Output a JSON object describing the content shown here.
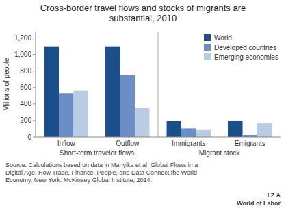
{
  "chart_data": {
    "type": "bar",
    "title": "Cross-border travel flows and stocks of migrants are\nsubstantial, 2010",
    "y_label": "Millions of people",
    "categories": [
      "Inflow",
      "Outflow",
      "Immigrants",
      "Emigrants"
    ],
    "series": [
      {
        "name": "World",
        "values": [
          1100,
          1100,
          195,
          200
        ],
        "color": "#1a4f8a"
      },
      {
        "name": "Developed countries",
        "values": [
          530,
          750,
          105,
          25
        ],
        "color": "#6b8ec7"
      },
      {
        "name": "Emerging economies",
        "values": [
          560,
          350,
          85,
          165
        ],
        "color": "#b8cce4"
      }
    ],
    "ylim": [
      0,
      1280
    ],
    "yticks": [
      0,
      200,
      400,
      600,
      800,
      {
        "value": 1000,
        "label": "1,000"
      },
      {
        "value": 1200,
        "label": "1,200"
      }
    ],
    "grid": false,
    "legend": "upper right",
    "annotations": [
      "Short-term traveler flows",
      "Migrant stock",
      "Source: Calculations based on data in Manyika et al. Global Flows in a\nDigital Age: How Trade, Finance, People, and Data Connect the World\nEconomy. New York: McKinsey Global Institute, 2014.",
      "I  Z  A",
      "World of Labor"
    ]
  }
}
